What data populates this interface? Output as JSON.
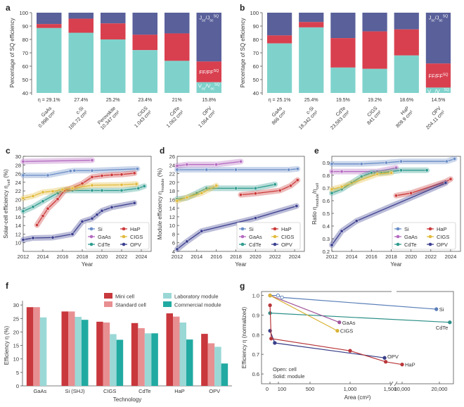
{
  "colors": {
    "j": "#59609a",
    "ff": "#d8404f",
    "v": "#7fd2cc",
    "grid": "#cfcfcf",
    "axis": "#555555",
    "text": "#333333",
    "Si": "#6a8dc7",
    "GaAs": "#b46ac0",
    "CdTe": "#2f9c8e",
    "HaP": "#cc3a3a",
    "CIGS": "#e2bb3c",
    "OPV": "#3c3f8f",
    "mini": "#c8383d",
    "standard": "#e88f92",
    "lab": "#9ad8d6",
    "commercial": "#21aaa1",
    "line_Si": "#5a7fb8",
    "line_CdTe": "#2b8f87",
    "line_GaAs": "#a0549b",
    "line_CIGS": "#d9b336",
    "line_OPV": "#3a3f88",
    "line_HaP": "#b8363a"
  },
  "chart_data": [
    {
      "id": "a",
      "panel": "a",
      "type": "bar",
      "ylabel": "Percentage of SQ efficiency",
      "yticks": [
        40,
        50,
        60,
        70,
        80,
        90,
        100
      ],
      "ylim": [
        40,
        100
      ],
      "categories": [
        "GaAs\n0.998 cm²",
        "c-Si\n165.72 cm²",
        "Perovskite\n10.347 cm²",
        "CIGS\n1.043 cm²",
        "CdTe\n1.062 cm²",
        "OPV\n1.064 cm²"
      ],
      "eta": [
        "η = 29.1%",
        "27.4%",
        "25.2%",
        "23.4%",
        "21%",
        "15.8%"
      ],
      "stack": [
        {
          "v": 88.5,
          "ff": 91.5
        },
        {
          "v": 85,
          "ff": 95.5
        },
        {
          "v": 80,
          "ff": 92
        },
        {
          "v": 72,
          "ff": 83.5
        },
        {
          "v": 64,
          "ff": 84.5
        },
        {
          "v": 48,
          "ff": 63.5
        }
      ],
      "legend": {
        "j": "J_sc/J_sc^SQ",
        "ff": "FF/FF^SQ",
        "v": "V_oc/V_oc^SQ"
      }
    },
    {
      "id": "b",
      "panel": "b",
      "type": "bar",
      "ylabel": "Percentage of SQ efficiency",
      "yticks": [
        40,
        50,
        60,
        70,
        80,
        90,
        100
      ],
      "ylim": [
        40,
        100
      ],
      "categories": [
        "GaAs\n866 cm²",
        "c-Si\n18,342 cm²",
        "CdTe\n23,583 cm²",
        "CIGS\n841 cm²",
        "HaP\n809.9 cm²",
        "OPV\n204.11 cm²"
      ],
      "eta": [
        "η = 25.1%",
        "25.4%",
        "19.5%",
        "19.2%",
        "18.6%",
        "14.5%"
      ],
      "stack": [
        {
          "v": 77,
          "ff": 83
        },
        {
          "v": 89,
          "ff": 93
        },
        {
          "v": 59,
          "ff": 81
        },
        {
          "v": 58,
          "ff": 86
        },
        {
          "v": 68,
          "ff": 87.5
        },
        {
          "v": 44,
          "ff": 62
        }
      ],
      "legend": {
        "j": "J_sc/J_sc^SQ",
        "ff": "FF/FF^SQ",
        "v": "V_oc/V_oc^SQ"
      }
    },
    {
      "id": "c",
      "panel": "c",
      "type": "line",
      "xlabel": "Year",
      "ylabel": "Solar-cell efficiency η_cell (%)",
      "xlim": [
        2012,
        2025
      ],
      "xticks": [
        2012,
        2014,
        2016,
        2018,
        2020,
        2022,
        2024
      ],
      "ylim": [
        8,
        30
      ],
      "yticks": [
        10,
        12,
        14,
        16,
        18,
        20,
        22,
        24,
        26,
        28,
        30
      ],
      "series": [
        {
          "name": "Si",
          "x": [
            2012,
            2014.5,
            2016.8,
            2017.2,
            2019,
            2023.6
          ],
          "y": [
            25.6,
            25.6,
            26.6,
            26.7,
            26.7,
            27.1
          ]
        },
        {
          "name": "GaAs",
          "x": [
            2012,
            2019
          ],
          "y": [
            28.8,
            29.1
          ]
        },
        {
          "name": "CdTe",
          "x": [
            2012,
            2013,
            2014,
            2015.5,
            2016,
            2017,
            2019,
            2020,
            2022,
            2023.7,
            2024.3
          ],
          "y": [
            17.3,
            18.3,
            19.6,
            21.5,
            22.1,
            22.1,
            22.1,
            22.1,
            22.1,
            22.6,
            23.1
          ]
        },
        {
          "name": "HaP",
          "x": [
            2013.4,
            2014,
            2014.5,
            2015.5,
            2016.2,
            2017,
            2018,
            2019,
            2020,
            2021,
            2022,
            2023.3
          ],
          "y": [
            14.1,
            16.2,
            17.9,
            20.1,
            22.1,
            22.7,
            23.7,
            25.2,
            25.5,
            25.7,
            25.8,
            26.1
          ]
        },
        {
          "name": "CIGS",
          "x": [
            2012,
            2013,
            2014,
            2015,
            2016,
            2017,
            2019,
            2022,
            2023.5
          ],
          "y": [
            20.3,
            20.8,
            21.7,
            21.9,
            22.3,
            22.6,
            23.3,
            23.4,
            23.6
          ]
        },
        {
          "name": "OPV",
          "x": [
            2012,
            2013,
            2015,
            2017,
            2018,
            2019,
            2019.5,
            2020,
            2021,
            2023.3
          ],
          "y": [
            10.7,
            11.1,
            11.2,
            12,
            14.9,
            15.6,
            16.5,
            17.4,
            18.2,
            19.2
          ]
        }
      ]
    },
    {
      "id": "d",
      "panel": "d",
      "type": "line",
      "xlabel": "Year",
      "ylabel": "Module efficiency η_module (%)",
      "xlim": [
        2012,
        2025
      ],
      "xticks": [
        2012,
        2014,
        2016,
        2018,
        2020,
        2022,
        2024
      ],
      "ylim": [
        4,
        26
      ],
      "yticks": [
        4,
        6,
        8,
        10,
        12,
        14,
        16,
        18,
        20,
        22,
        24,
        26
      ],
      "series": [
        {
          "name": "Si",
          "x": [
            2012,
            2015,
            2018,
            2023.4,
            2024.3
          ],
          "y": [
            22.9,
            22.9,
            22.9,
            22.9,
            23.1
          ]
        },
        {
          "name": "GaAs",
          "x": [
            2012,
            2013,
            2016,
            2018.5
          ],
          "y": [
            23.8,
            24.1,
            24.1,
            24.8
          ]
        },
        {
          "name": "CdTe",
          "x": [
            2012,
            2013,
            2014,
            2015,
            2018,
            2020,
            2022
          ],
          "y": [
            16.1,
            16.4,
            17.5,
            18.6,
            18.6,
            18.6,
            19.5
          ]
        },
        {
          "name": "HaP",
          "x": [
            2018.5,
            2020,
            2022.5,
            2023.6,
            2024.3
          ],
          "y": [
            17.1,
            17.4,
            18.1,
            19.2,
            20.5
          ]
        },
        {
          "name": "CIGS",
          "x": [
            2012,
            2013,
            2014.5,
            2016
          ],
          "y": [
            15.7,
            16.5,
            17.5,
            19.2
          ]
        },
        {
          "name": "OPV",
          "x": [
            2012,
            2013,
            2014.5,
            2020,
            2024.2
          ],
          "y": [
            4.5,
            6.3,
            8.7,
            11.7,
            14.5
          ]
        }
      ]
    },
    {
      "id": "e",
      "panel": "e",
      "type": "line",
      "xlabel": "Year",
      "ylabel": "Ratio η_module/η_cell",
      "xlim": [
        2012,
        2025
      ],
      "xticks": [
        2012,
        2014,
        2016,
        2018,
        2020,
        2022,
        2024
      ],
      "ylim": [
        0.2,
        0.95
      ],
      "yticks": [
        0.2,
        0.3,
        0.4,
        0.5,
        0.6,
        0.7,
        0.8,
        0.9
      ],
      "series": [
        {
          "name": "Si",
          "x": [
            2012,
            2015,
            2017.5,
            2019,
            2023.6,
            2024.4
          ],
          "y": [
            0.89,
            0.89,
            0.9,
            0.91,
            0.91,
            0.93
          ]
        },
        {
          "name": "GaAs",
          "x": [
            2012,
            2013,
            2016.6,
            2018.5
          ],
          "y": [
            0.83,
            0.83,
            0.83,
            0.86
          ]
        },
        {
          "name": "CdTe",
          "x": [
            2012,
            2013,
            2014,
            2015,
            2016,
            2017,
            2018,
            2019,
            2021.6
          ],
          "y": [
            0.66,
            0.69,
            0.74,
            0.79,
            0.82,
            0.82,
            0.83,
            0.84,
            0.84
          ]
        },
        {
          "name": "HaP",
          "x": [
            2018.5,
            2020,
            2023.5,
            2024
          ],
          "y": [
            0.64,
            0.66,
            0.75,
            0.77
          ]
        },
        {
          "name": "CIGS",
          "x": [
            2012,
            2013,
            2016.6,
            2018
          ],
          "y": [
            0.69,
            0.71,
            0.81,
            0.82
          ]
        },
        {
          "name": "OPV",
          "x": [
            2012,
            2013,
            2014.5,
            2023.5
          ],
          "y": [
            0.25,
            0.36,
            0.44,
            0.74
          ]
        }
      ]
    },
    {
      "id": "f",
      "panel": "f",
      "type": "bar",
      "xlabel": "Technology",
      "ylabel": "Efficiency η (%)",
      "ylim": [
        0,
        35
      ],
      "yticks": [
        0,
        5,
        10,
        15,
        20,
        25,
        30
      ],
      "categories": [
        "GaAs",
        "Si (SHJ)",
        "CIGS",
        "CdTe",
        "HaP",
        "OPV"
      ],
      "series": [
        {
          "name": "Mini cell",
          "values": [
            29.2,
            27.6,
            23.8,
            23.3,
            26.9,
            19.3
          ]
        },
        {
          "name": "Standard cell",
          "values": [
            29.2,
            27.6,
            23.5,
            21.4,
            25.7,
            15.8
          ]
        },
        {
          "name": "Laboratory module",
          "values": [
            25.4,
            25.6,
            19.2,
            19.5,
            23.5,
            14.5
          ]
        },
        {
          "name": "Commercial module",
          "values": [
            null,
            24.5,
            17.1,
            19.5,
            17.2,
            8.3
          ]
        }
      ]
    },
    {
      "id": "g",
      "panel": "g",
      "type": "line",
      "xlabel": "Area (cm²)",
      "ylabel": "Efficiency η (normalized)",
      "ylim": [
        0.55,
        1.02
      ],
      "yticks": [
        0.6,
        0.7,
        0.8,
        0.9,
        1.0
      ],
      "xticks": [
        "0",
        "100",
        "500",
        "1,000",
        "1,500",
        "10,000",
        "20,000"
      ],
      "note": "Open: cell\nSolid: module",
      "series": [
        {
          "name": "Si",
          "points": [
            [
              1,
              1.0
            ],
            [
              100,
              1.0
            ],
            [
              150,
              0.99
            ],
            [
              18342,
              0.93
            ]
          ]
        },
        {
          "name": "CdTe",
          "points": [
            [
              1,
              0.91
            ],
            [
              23583,
              0.863
            ]
          ]
        },
        {
          "name": "GaAs",
          "points": [
            [
              1,
              1.0
            ],
            [
              866,
              0.863
            ]
          ]
        },
        {
          "name": "CIGS",
          "points": [
            [
              1,
              1.0
            ],
            [
              841,
              0.82
            ]
          ]
        },
        {
          "name": "OPV",
          "points": [
            [
              1,
              0.82
            ],
            [
              60,
              0.758
            ],
            [
              1430,
              0.682
            ]
          ]
        },
        {
          "name": "HaP",
          "points": [
            [
              1,
              0.95
            ],
            [
              15,
              0.78
            ],
            [
              1000,
              0.718
            ],
            [
              1444,
              0.662
            ],
            [
              5000,
              0.648
            ]
          ]
        }
      ]
    }
  ]
}
